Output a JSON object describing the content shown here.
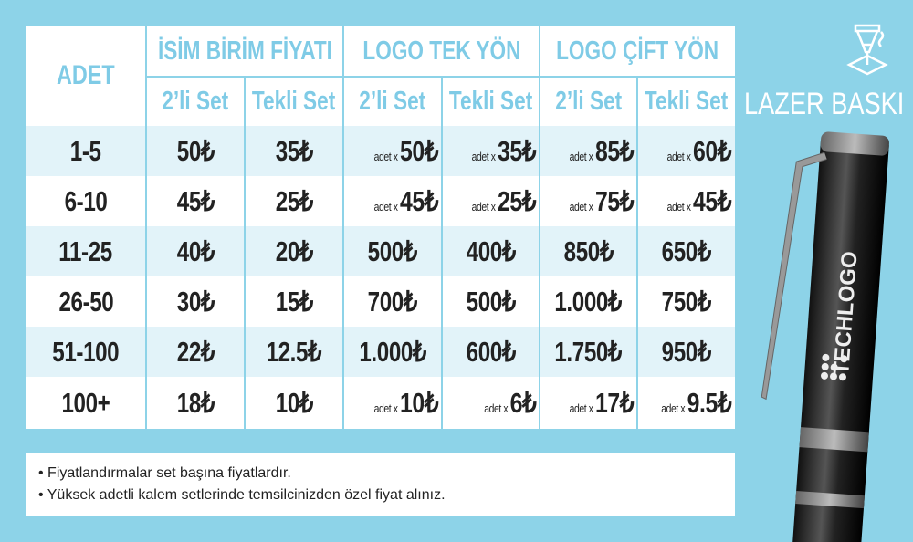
{
  "header": {
    "adet": "ADET",
    "groups": [
      "İSİM BİRİM FİYATI",
      "LOGO TEK YÖN",
      "LOGO ÇİFT YÖN"
    ],
    "subs": [
      "2’li Set",
      "Tekli Set",
      "2’li Set",
      "Tekli Set",
      "2’li Set",
      "Tekli Set"
    ]
  },
  "rows": [
    {
      "adet": "1-5",
      "cells": [
        {
          "p": "",
          "v": "50₺"
        },
        {
          "p": "",
          "v": "35₺"
        },
        {
          "p": "adet x",
          "v": "50₺"
        },
        {
          "p": "adet x",
          "v": "35₺"
        },
        {
          "p": "adet x",
          "v": "85₺"
        },
        {
          "p": "adet x",
          "v": "60₺"
        }
      ]
    },
    {
      "adet": "6-10",
      "cells": [
        {
          "p": "",
          "v": "45₺"
        },
        {
          "p": "",
          "v": "25₺"
        },
        {
          "p": "adet x",
          "v": "45₺"
        },
        {
          "p": "adet x",
          "v": "25₺"
        },
        {
          "p": "adet x",
          "v": "75₺"
        },
        {
          "p": "adet x",
          "v": "45₺"
        }
      ]
    },
    {
      "adet": "11-25",
      "cells": [
        {
          "p": "",
          "v": "40₺"
        },
        {
          "p": "",
          "v": "20₺"
        },
        {
          "p": "",
          "v": "500₺"
        },
        {
          "p": "",
          "v": "400₺"
        },
        {
          "p": "",
          "v": "850₺"
        },
        {
          "p": "",
          "v": "650₺"
        }
      ]
    },
    {
      "adet": "26-50",
      "cells": [
        {
          "p": "",
          "v": "30₺"
        },
        {
          "p": "",
          "v": "15₺"
        },
        {
          "p": "",
          "v": "700₺"
        },
        {
          "p": "",
          "v": "500₺"
        },
        {
          "p": "",
          "v": "1.000₺"
        },
        {
          "p": "",
          "v": "750₺"
        }
      ]
    },
    {
      "adet": "51-100",
      "cells": [
        {
          "p": "",
          "v": "22₺"
        },
        {
          "p": "",
          "v": "12.5₺"
        },
        {
          "p": "",
          "v": "1.000₺"
        },
        {
          "p": "",
          "v": "600₺"
        },
        {
          "p": "",
          "v": "1.750₺"
        },
        {
          "p": "",
          "v": "950₺"
        }
      ]
    },
    {
      "adet": "100+",
      "cells": [
        {
          "p": "",
          "v": "18₺"
        },
        {
          "p": "",
          "v": "10₺"
        },
        {
          "p": "adet x",
          "v": "10₺"
        },
        {
          "p": "adet x",
          "v": "6₺"
        },
        {
          "p": "adet x",
          "v": "17₺"
        },
        {
          "p": "adet x",
          "v": "9.5₺"
        }
      ]
    }
  ],
  "notes": [
    "• Fiyatlandırmalar set başına fiyatlardır.",
    "• Yüksek adetli kalem setlerinde temsilcinizden özel fiyat alınız."
  ],
  "side": {
    "title": "LAZER BASKI",
    "icon": "laser-engraving-icon",
    "pen_logo": "TECHLOGO"
  },
  "colors": {
    "background": "#8dd3e8",
    "header_text": "#7fcbe6",
    "row_alt": "#e2f3f9"
  }
}
